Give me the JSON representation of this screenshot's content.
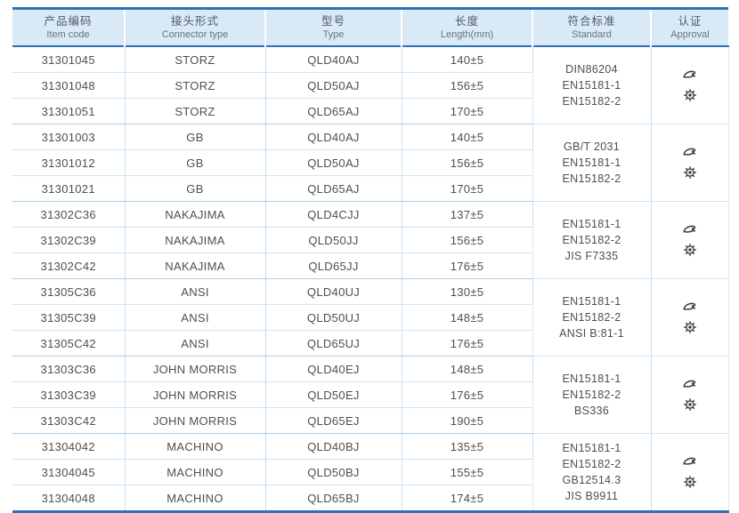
{
  "colors": {
    "accent_border": "#2e6fb7",
    "header_bg": "#d9e9f6",
    "grid_line": "#c3e0f0",
    "group_line": "#a8d0e8",
    "text": "#4f4f4f",
    "icon": "#3b3b3b"
  },
  "table": {
    "headers": [
      {
        "zh": "产品编码",
        "en": "Item code"
      },
      {
        "zh": "接头形式",
        "en": "Connector type"
      },
      {
        "zh": "型号",
        "en": "Type"
      },
      {
        "zh": "长度",
        "en": "Length(mm)"
      },
      {
        "zh": "符合标准",
        "en": "Standard"
      },
      {
        "zh": "认证",
        "en": "Approval"
      }
    ],
    "approval_icons": [
      {
        "name": "certification-logo-icon"
      },
      {
        "name": "wheelmark-icon"
      }
    ],
    "groups": [
      {
        "rows": [
          {
            "item_code": "31301045",
            "connector_type": "STORZ",
            "type": "QLD40AJ",
            "length": "140±5"
          },
          {
            "item_code": "31301048",
            "connector_type": "STORZ",
            "type": "QLD50AJ",
            "length": "156±5"
          },
          {
            "item_code": "31301051",
            "connector_type": "STORZ",
            "type": "QLD65AJ",
            "length": "170±5"
          }
        ],
        "standards": [
          "DIN86204",
          "EN15181-1",
          "EN15182-2"
        ]
      },
      {
        "rows": [
          {
            "item_code": "31301003",
            "connector_type": "GB",
            "type": "QLD40AJ",
            "length": "140±5"
          },
          {
            "item_code": "31301012",
            "connector_type": "GB",
            "type": "QLD50AJ",
            "length": "156±5"
          },
          {
            "item_code": "31301021",
            "connector_type": "GB",
            "type": "QLD65AJ",
            "length": "170±5"
          }
        ],
        "standards": [
          "GB/T 2031",
          "EN15181-1",
          "EN15182-2"
        ]
      },
      {
        "rows": [
          {
            "item_code": "31302C36",
            "connector_type": "NAKAJIMA",
            "type": "QLD4CJJ",
            "length": "137±5"
          },
          {
            "item_code": "31302C39",
            "connector_type": "NAKAJIMA",
            "type": "QLD50JJ",
            "length": "156±5"
          },
          {
            "item_code": "31302C42",
            "connector_type": "NAKAJIMA",
            "type": "QLD65JJ",
            "length": "176±5"
          }
        ],
        "standards": [
          "EN15181-1",
          "EN15182-2",
          "JIS F7335"
        ]
      },
      {
        "rows": [
          {
            "item_code": "31305C36",
            "connector_type": "ANSI",
            "type": "QLD40UJ",
            "length": "130±5"
          },
          {
            "item_code": "31305C39",
            "connector_type": "ANSI",
            "type": "QLD50UJ",
            "length": "148±5"
          },
          {
            "item_code": "31305C42",
            "connector_type": "ANSI",
            "type": "QLD65UJ",
            "length": "176±5"
          }
        ],
        "standards": [
          "EN15181-1",
          "EN15182-2",
          "ANSI B:81-1"
        ]
      },
      {
        "rows": [
          {
            "item_code": "31303C36",
            "connector_type": "JOHN MORRIS",
            "type": "QLD40EJ",
            "length": "148±5"
          },
          {
            "item_code": "31303C39",
            "connector_type": "JOHN MORRIS",
            "type": "QLD50EJ",
            "length": "176±5"
          },
          {
            "item_code": "31303C42",
            "connector_type": "JOHN MORRIS",
            "type": "QLD65EJ",
            "length": "190±5"
          }
        ],
        "standards": [
          "EN15181-1",
          "EN15182-2",
          "BS336"
        ]
      },
      {
        "rows": [
          {
            "item_code": "31304042",
            "connector_type": "MACHINO",
            "type": "QLD40BJ",
            "length": "135±5"
          },
          {
            "item_code": "31304045",
            "connector_type": "MACHINO",
            "type": "QLD50BJ",
            "length": "155±5"
          },
          {
            "item_code": "31304048",
            "connector_type": "MACHINO",
            "type": "QLD65BJ",
            "length": "174±5"
          }
        ],
        "standards": [
          "EN15181-1",
          "EN15182-2",
          "GB12514.3",
          "JIS B9911"
        ]
      }
    ]
  }
}
